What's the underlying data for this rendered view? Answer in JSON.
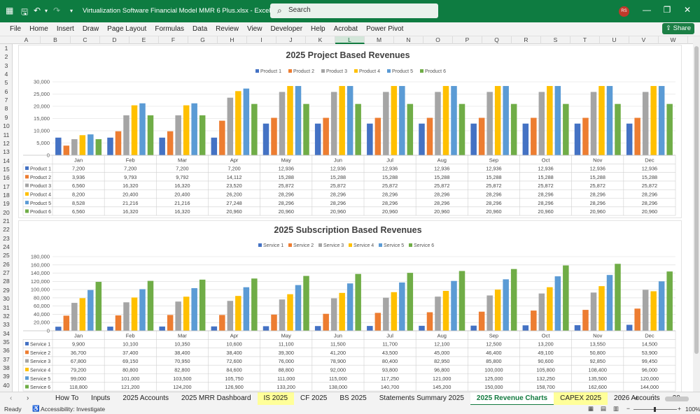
{
  "titlebar": {
    "doc_title": "Virtualization Software Financial Model MMR 6 Plus.xlsx  -  Excel",
    "search_placeholder": "Search",
    "avatar_initials": "RS"
  },
  "menu": [
    "File",
    "Home",
    "Insert",
    "Draw",
    "Page Layout",
    "Formulas",
    "Data",
    "Review",
    "View",
    "Developer",
    "Help",
    "Acrobat",
    "Power Pivot"
  ],
  "share_label": "Share",
  "columns": [
    "A",
    "B",
    "C",
    "D",
    "E",
    "F",
    "G",
    "H",
    "I",
    "J",
    "K",
    "L",
    "M",
    "N",
    "O",
    "P",
    "Q",
    "R",
    "S",
    "T",
    "U",
    "V",
    "W"
  ],
  "selected_column": "L",
  "rows": [
    "1",
    "2",
    "3",
    "4",
    "5",
    "6",
    "7",
    "8",
    "9",
    "10",
    "11",
    "12",
    "13",
    "14",
    "15",
    "16",
    "17",
    "18",
    "19",
    "20",
    "21",
    "22",
    "23",
    "24",
    "25",
    "26",
    "27",
    "28",
    "29",
    "30",
    "31",
    "32",
    "33",
    "34",
    "35",
    "36",
    "37",
    "38",
    "39",
    "40"
  ],
  "colors": {
    "s1": "#4472c4",
    "s2": "#ed7d31",
    "s3": "#a5a5a5",
    "s4": "#ffc000",
    "s5": "#5b9bd5",
    "s6": "#70ad47",
    "excel_green": "#0e7c41"
  },
  "chart_data": [
    {
      "type": "bar",
      "title": "2025 Project Based Revenues",
      "categories": [
        "Jan",
        "Feb",
        "Mar",
        "Apr",
        "May",
        "Jun",
        "Jul",
        "Aug",
        "Sep",
        "Oct",
        "Nov",
        "Dec"
      ],
      "ylim": [
        0,
        30000
      ],
      "yticks": [
        "0",
        "5,000",
        "10,000",
        "15,000",
        "20,000",
        "25,000",
        "30,000"
      ],
      "grid": true,
      "legend": "top",
      "series": [
        {
          "name": "Product 1",
          "values": [
            7200,
            7200,
            7200,
            7200,
            12936,
            12936,
            12936,
            12936,
            12936,
            12936,
            12936,
            12936
          ],
          "labels": [
            "7,200",
            "7,200",
            "7,200",
            "7,200",
            "12,936",
            "12,936",
            "12,936",
            "12,936",
            "12,936",
            "12,936",
            "12,936",
            "12,936"
          ]
        },
        {
          "name": "Product 2",
          "values": [
            3936,
            9793,
            9792,
            14112,
            15288,
            15288,
            15288,
            15288,
            15288,
            15288,
            15288,
            15288
          ],
          "labels": [
            "3,936",
            "9,793",
            "9,792",
            "14,112",
            "15,288",
            "15,288",
            "15,288",
            "15,288",
            "15,288",
            "15,288",
            "15,288",
            "15,288"
          ]
        },
        {
          "name": "Product 3",
          "values": [
            6560,
            16320,
            16320,
            23520,
            25872,
            25872,
            25872,
            25872,
            25872,
            25872,
            25872,
            25872
          ],
          "labels": [
            "6,560",
            "16,320",
            "16,320",
            "23,520",
            "25,872",
            "25,872",
            "25,872",
            "25,872",
            "25,872",
            "25,872",
            "25,872",
            "25,872"
          ]
        },
        {
          "name": "Product 4",
          "values": [
            8200,
            20400,
            20400,
            26200,
            28296,
            28296,
            28296,
            28296,
            28296,
            28296,
            28296,
            28296
          ],
          "labels": [
            "8,200",
            "20,400",
            "20,400",
            "26,200",
            "28,296",
            "28,296",
            "28,296",
            "28,296",
            "28,296",
            "28,296",
            "28,296",
            "28,296"
          ]
        },
        {
          "name": "Product 5",
          "values": [
            8528,
            21216,
            21216,
            27248,
            28296,
            28296,
            28296,
            28296,
            28296,
            28296,
            28296,
            28296
          ],
          "labels": [
            "8,528",
            "21,216",
            "21,216",
            "27,248",
            "28,296",
            "28,296",
            "28,296",
            "28,296",
            "28,296",
            "28,296",
            "28,296",
            "28,296"
          ]
        },
        {
          "name": "Product 6",
          "values": [
            6560,
            16320,
            16320,
            20960,
            20960,
            20960,
            20960,
            20960,
            20960,
            20960,
            20960,
            20960
          ],
          "labels": [
            "6,560",
            "16,320",
            "16,320",
            "20,960",
            "20,960",
            "20,960",
            "20,960",
            "20,960",
            "20,960",
            "20,960",
            "20,960",
            "20,960"
          ]
        }
      ]
    },
    {
      "type": "bar",
      "title": "2025 Subscription Based Revenues",
      "categories": [
        "Jan",
        "Feb",
        "Mar",
        "Apr",
        "May",
        "Jun",
        "Jul",
        "Aug",
        "Sep",
        "Oct",
        "Nov",
        "Dec"
      ],
      "ylim": [
        0,
        180000
      ],
      "yticks": [
        "0",
        "20,000",
        "40,000",
        "60,000",
        "80,000",
        "100,000",
        "120,000",
        "140,000",
        "160,000",
        "180,000"
      ],
      "grid": true,
      "legend": "top",
      "series": [
        {
          "name": "Service 1",
          "values": [
            9900,
            10100,
            10350,
            10600,
            11100,
            11500,
            11700,
            12100,
            12500,
            13200,
            13550,
            14500
          ],
          "labels": [
            "9,900",
            "10,100",
            "10,350",
            "10,600",
            "11,100",
            "11,500",
            "11,700",
            "12,100",
            "12,500",
            "13,200",
            "13,550",
            "14,500"
          ]
        },
        {
          "name": "Service 2",
          "values": [
            36700,
            37400,
            38400,
            38400,
            39300,
            41200,
            43500,
            45000,
            46400,
            49100,
            50800,
            53900
          ],
          "labels": [
            "36,700",
            "37,400",
            "38,400",
            "38,400",
            "39,300",
            "41,200",
            "43,500",
            "45,000",
            "46,400",
            "49,100",
            "50,800",
            "53,900"
          ]
        },
        {
          "name": "Service 3",
          "values": [
            67800,
            69150,
            70950,
            72600,
            76000,
            78900,
            80400,
            82950,
            85800,
            90600,
            92850,
            99450
          ],
          "labels": [
            "67,800",
            "69,150",
            "70,950",
            "72,600",
            "76,000",
            "78,900",
            "80,400",
            "82,950",
            "85,800",
            "90,600",
            "92,850",
            "99,450"
          ]
        },
        {
          "name": "Service 4",
          "values": [
            79200,
            80800,
            82800,
            84600,
            88800,
            92000,
            93800,
            96800,
            100000,
            105800,
            108400,
            96000
          ],
          "labels": [
            "79,200",
            "80,800",
            "82,800",
            "84,600",
            "88,800",
            "92,000",
            "93,800",
            "96,800",
            "100,000",
            "105,800",
            "108,400",
            "96,000"
          ]
        },
        {
          "name": "Service 5",
          "values": [
            99000,
            101000,
            103500,
            105750,
            111000,
            115000,
            117250,
            121000,
            125000,
            132250,
            135500,
            120000
          ],
          "labels": [
            "99,000",
            "101,000",
            "103,500",
            "105,750",
            "111,000",
            "115,000",
            "117,250",
            "121,000",
            "125,000",
            "132,250",
            "135,500",
            "120,000"
          ]
        },
        {
          "name": "Service 6",
          "values": [
            118800,
            121200,
            124200,
            126900,
            133200,
            138000,
            140700,
            145200,
            150000,
            158700,
            162600,
            144000
          ],
          "labels": [
            "118,800",
            "121,200",
            "124,200",
            "126,900",
            "133,200",
            "138,000",
            "140,700",
            "145,200",
            "150,000",
            "158,700",
            "162,600",
            "144,000"
          ]
        }
      ]
    }
  ],
  "tabs": [
    {
      "label": "How To",
      "style": "normal"
    },
    {
      "label": "Inputs",
      "style": "normal"
    },
    {
      "label": "2025 Accounts",
      "style": "normal"
    },
    {
      "label": "2025 MRR Dashboard",
      "style": "normal"
    },
    {
      "label": "IS 2025",
      "style": "yellow"
    },
    {
      "label": "CF 2025",
      "style": "normal"
    },
    {
      "label": "BS 2025",
      "style": "normal"
    },
    {
      "label": "Statements Summary 2025",
      "style": "normal"
    },
    {
      "label": "2025 Revenue Charts",
      "style": "active"
    },
    {
      "label": "CAPEX 2025",
      "style": "yellow"
    },
    {
      "label": "2026 Accounts",
      "style": "normal"
    },
    {
      "label": "20",
      "style": "normal"
    }
  ],
  "status": {
    "ready": "Ready",
    "accessibility": "Accessibility: Investigate",
    "zoom": "100%"
  }
}
